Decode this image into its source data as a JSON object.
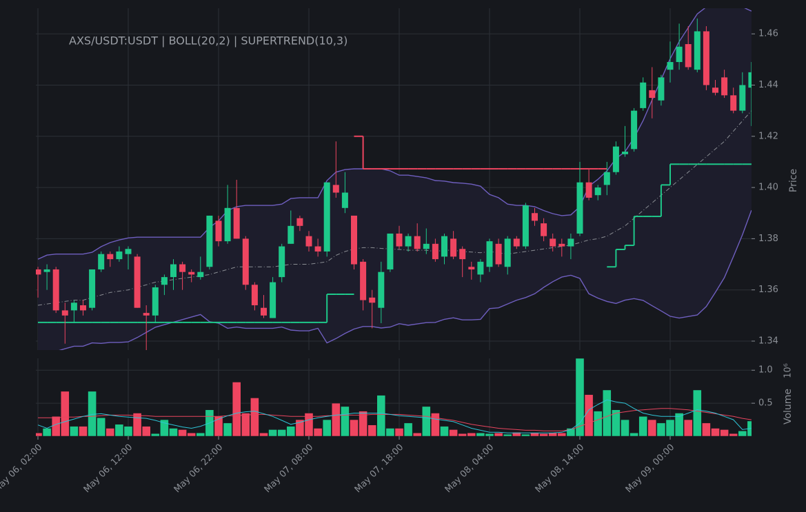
{
  "chart_data": {
    "type": "candlestick",
    "title": "AXS/USDT:USDT | BOLL(20,2) | SUPERTREND(10,3)",
    "y_label": "Price",
    "x": [
      "May 06, 02:00",
      "May 06, 03:00",
      "May 06, 04:00",
      "May 06, 05:00",
      "May 06, 06:00",
      "May 06, 07:00",
      "May 06, 08:00",
      "May 06, 09:00",
      "May 06, 10:00",
      "May 06, 11:00",
      "May 06, 12:00",
      "May 06, 13:00",
      "May 06, 14:00",
      "May 06, 15:00",
      "May 06, 16:00",
      "May 06, 17:00",
      "May 06, 18:00",
      "May 06, 19:00",
      "May 06, 20:00",
      "May 06, 21:00",
      "May 06, 22:00",
      "May 06, 23:00",
      "May 07, 00:00",
      "May 07, 01:00",
      "May 07, 02:00",
      "May 07, 03:00",
      "May 07, 04:00",
      "May 07, 05:00",
      "May 07, 06:00",
      "May 07, 07:00",
      "May 07, 08:00",
      "May 07, 09:00",
      "May 07, 10:00",
      "May 07, 11:00",
      "May 07, 12:00",
      "May 07, 13:00",
      "May 07, 14:00",
      "May 07, 15:00",
      "May 07, 16:00",
      "May 07, 17:00",
      "May 07, 18:00",
      "May 07, 19:00",
      "May 07, 20:00",
      "May 07, 21:00",
      "May 07, 22:00",
      "May 07, 23:00",
      "May 08, 00:00",
      "May 08, 01:00",
      "May 08, 02:00",
      "May 08, 03:00",
      "May 08, 04:00",
      "May 08, 05:00",
      "May 08, 06:00",
      "May 08, 07:00",
      "May 08, 08:00",
      "May 08, 09:00",
      "May 08, 10:00",
      "May 08, 11:00",
      "May 08, 12:00",
      "May 08, 13:00",
      "May 08, 14:00",
      "May 08, 15:00",
      "May 08, 16:00",
      "May 08, 17:00",
      "May 08, 18:00",
      "May 08, 19:00",
      "May 08, 20:00",
      "May 08, 21:00",
      "May 08, 22:00",
      "May 08, 23:00",
      "May 09, 00:00",
      "May 09, 01:00",
      "May 09, 02:00",
      "May 09, 03:00",
      "May 09, 04:00",
      "May 09, 05:00",
      "May 09, 06:00",
      "May 09, 07:00",
      "May 09, 08:00",
      "May 09, 09:00"
    ],
    "xticks": [
      "May 06, 02:00",
      "May 06, 12:00",
      "May 06, 22:00",
      "May 07, 08:00",
      "May 07, 18:00",
      "May 08, 04:00",
      "May 08, 14:00",
      "May 09, 00:00"
    ],
    "open": [
      1.368,
      1.367,
      1.368,
      1.352,
      1.352,
      1.354,
      1.353,
      1.368,
      1.374,
      1.372,
      1.374,
      1.373,
      1.351,
      1.35,
      1.362,
      1.365,
      1.37,
      1.367,
      1.365,
      1.369,
      1.387,
      1.379,
      1.392,
      1.38,
      1.362,
      1.353,
      1.349,
      1.365,
      1.378,
      1.388,
      1.381,
      1.377,
      1.375,
      1.401,
      1.392,
      1.389,
      1.371,
      1.357,
      1.353,
      1.368,
      1.382,
      1.377,
      1.381,
      1.376,
      1.378,
      1.373,
      1.38,
      1.376,
      1.369,
      1.366,
      1.369,
      1.378,
      1.369,
      1.38,
      1.377,
      1.39,
      1.386,
      1.38,
      1.378,
      1.377,
      1.382,
      1.402,
      1.397,
      1.401,
      1.406,
      1.413,
      1.415,
      1.431,
      1.438,
      1.434,
      1.446,
      1.449,
      1.456,
      1.446,
      1.461,
      1.439,
      1.443,
      1.436,
      1.43,
      1.439
    ],
    "high": [
      1.369,
      1.37,
      1.369,
      1.355,
      1.356,
      1.356,
      1.368,
      1.375,
      1.375,
      1.377,
      1.377,
      1.374,
      1.354,
      1.362,
      1.366,
      1.372,
      1.371,
      1.368,
      1.373,
      1.389,
      1.389,
      1.401,
      1.403,
      1.381,
      1.363,
      1.358,
      1.365,
      1.378,
      1.391,
      1.389,
      1.383,
      1.38,
      1.402,
      1.418,
      1.406,
      1.389,
      1.372,
      1.36,
      1.371,
      1.382,
      1.385,
      1.382,
      1.386,
      1.384,
      1.38,
      1.382,
      1.383,
      1.377,
      1.371,
      1.372,
      1.38,
      1.38,
      1.381,
      1.381,
      1.394,
      1.392,
      1.388,
      1.382,
      1.38,
      1.382,
      1.41,
      1.407,
      1.401,
      1.41,
      1.418,
      1.424,
      1.431,
      1.443,
      1.447,
      1.444,
      1.457,
      1.464,
      1.463,
      1.466,
      1.463,
      1.442,
      1.446,
      1.439,
      1.445,
      1.449
    ],
    "low": [
      1.357,
      1.36,
      1.351,
      1.339,
      1.347,
      1.35,
      1.352,
      1.367,
      1.369,
      1.371,
      1.368,
      1.353,
      1.336,
      1.347,
      1.358,
      1.36,
      1.36,
      1.363,
      1.364,
      1.368,
      1.377,
      1.378,
      1.38,
      1.36,
      1.352,
      1.349,
      1.349,
      1.363,
      1.378,
      1.383,
      1.375,
      1.373,
      1.373,
      1.396,
      1.39,
      1.368,
      1.352,
      1.345,
      1.347,
      1.367,
      1.376,
      1.375,
      1.375,
      1.374,
      1.371,
      1.37,
      1.372,
      1.365,
      1.364,
      1.363,
      1.367,
      1.369,
      1.366,
      1.376,
      1.376,
      1.385,
      1.379,
      1.375,
      1.373,
      1.372,
      1.381,
      1.395,
      1.395,
      1.397,
      1.405,
      1.412,
      1.414,
      1.43,
      1.427,
      1.432,
      1.441,
      1.446,
      1.446,
      1.445,
      1.438,
      1.436,
      1.435,
      1.429,
      1.429,
      1.424
    ],
    "close": [
      1.366,
      1.368,
      1.352,
      1.35,
      1.355,
      1.352,
      1.368,
      1.374,
      1.372,
      1.375,
      1.376,
      1.353,
      1.35,
      1.361,
      1.365,
      1.37,
      1.367,
      1.366,
      1.367,
      1.389,
      1.379,
      1.392,
      1.38,
      1.362,
      1.354,
      1.35,
      1.363,
      1.377,
      1.385,
      1.385,
      1.377,
      1.375,
      1.402,
      1.398,
      1.398,
      1.37,
      1.356,
      1.355,
      1.367,
      1.382,
      1.377,
      1.381,
      1.376,
      1.378,
      1.372,
      1.381,
      1.373,
      1.372,
      1.368,
      1.371,
      1.379,
      1.37,
      1.38,
      1.377,
      1.393,
      1.387,
      1.381,
      1.377,
      1.377,
      1.38,
      1.402,
      1.396,
      1.4,
      1.406,
      1.416,
      1.414,
      1.43,
      1.441,
      1.435,
      1.443,
      1.449,
      1.455,
      1.447,
      1.461,
      1.44,
      1.437,
      1.436,
      1.43,
      1.44,
      1.445
    ],
    "boll_upper": [
      1.372,
      1.3736,
      1.374,
      1.374,
      1.374,
      1.374,
      1.3747,
      1.3769,
      1.3785,
      1.3795,
      1.3803,
      1.3806,
      1.3806,
      1.3806,
      1.3806,
      1.3806,
      1.3806,
      1.3806,
      1.3806,
      1.3844,
      1.387,
      1.391,
      1.3925,
      1.393,
      1.393,
      1.393,
      1.393,
      1.3935,
      1.3957,
      1.396,
      1.396,
      1.396,
      1.4027,
      1.406,
      1.407,
      1.4073,
      1.4073,
      1.4073,
      1.4073,
      1.4065,
      1.4048,
      1.4048,
      1.4043,
      1.4038,
      1.4027,
      1.4025,
      1.4019,
      1.4017,
      1.4013,
      1.4005,
      1.3973,
      1.396,
      1.3935,
      1.393,
      1.393,
      1.3925,
      1.391,
      1.3898,
      1.389,
      1.3893,
      1.3925,
      1.4005,
      1.4032,
      1.4065,
      1.4113,
      1.414,
      1.4194,
      1.4261,
      1.4342,
      1.4422,
      1.4503,
      1.457,
      1.4624,
      1.4678,
      1.4705,
      1.471,
      1.4712,
      1.471,
      1.4705,
      1.4689
    ],
    "boll_middle": [
      1.354,
      1.3545,
      1.355,
      1.3555,
      1.356,
      1.356,
      1.357,
      1.358,
      1.359,
      1.3595,
      1.36,
      1.361,
      1.362,
      1.363,
      1.3635,
      1.364,
      1.3645,
      1.365,
      1.3655,
      1.366,
      1.367,
      1.368,
      1.369,
      1.369,
      1.369,
      1.369,
      1.369,
      1.3695,
      1.37,
      1.37,
      1.37,
      1.3705,
      1.371,
      1.3735,
      1.375,
      1.376,
      1.3765,
      1.3765,
      1.3762,
      1.376,
      1.3758,
      1.3755,
      1.3755,
      1.3755,
      1.375,
      1.3755,
      1.3755,
      1.375,
      1.3748,
      1.3745,
      1.375,
      1.3745,
      1.374,
      1.3745,
      1.375,
      1.3755,
      1.376,
      1.3765,
      1.377,
      1.3775,
      1.3785,
      1.3795,
      1.38,
      1.381,
      1.383,
      1.385,
      1.388,
      1.391,
      1.394,
      1.397,
      1.4,
      1.403,
      1.406,
      1.409,
      1.412,
      1.415,
      1.418,
      1.422,
      1.426,
      1.43
    ],
    "boll_lower": [
      1.336,
      1.3354,
      1.336,
      1.337,
      1.338,
      1.338,
      1.3393,
      1.3391,
      1.3395,
      1.3395,
      1.3397,
      1.3414,
      1.3434,
      1.3454,
      1.3464,
      1.3474,
      1.3484,
      1.3494,
      1.3504,
      1.3476,
      1.347,
      1.345,
      1.3455,
      1.345,
      1.345,
      1.345,
      1.345,
      1.3455,
      1.3443,
      1.344,
      1.344,
      1.345,
      1.3393,
      1.341,
      1.343,
      1.3447,
      1.3457,
      1.3457,
      1.3451,
      1.3455,
      1.3468,
      1.3462,
      1.3467,
      1.3472,
      1.3473,
      1.3485,
      1.3491,
      1.3483,
      1.3483,
      1.3485,
      1.3527,
      1.353,
      1.3545,
      1.356,
      1.357,
      1.3585,
      1.361,
      1.3632,
      1.365,
      1.3657,
      1.3645,
      1.3585,
      1.3568,
      1.3555,
      1.3547,
      1.356,
      1.3566,
      1.3559,
      1.3538,
      1.3518,
      1.3497,
      1.349,
      1.3496,
      1.3502,
      1.3535,
      1.359,
      1.3648,
      1.373,
      1.3815,
      1.3911
    ],
    "supertrend_up": [
      1.3473,
      1.3473,
      1.3473,
      1.3473,
      1.3473,
      1.3473,
      1.3473,
      1.3473,
      1.3473,
      1.3473,
      1.3473,
      1.3473,
      1.3473,
      1.3473,
      1.3473,
      1.3473,
      1.3473,
      1.3473,
      1.3473,
      1.3473,
      1.3473,
      1.3473,
      1.3473,
      1.3473,
      1.3473,
      1.3473,
      1.3473,
      1.3473,
      1.3473,
      1.3473,
      1.3473,
      1.3473,
      1.3583,
      1.3583,
      1.3583,
      null,
      null,
      null,
      null,
      null,
      null,
      null,
      null,
      null,
      null,
      null,
      null,
      null,
      null,
      null,
      null,
      null,
      null,
      null,
      null,
      null,
      null,
      null,
      null,
      null,
      null,
      null,
      null,
      1.369,
      1.3758,
      1.3774,
      1.3887,
      1.3887,
      1.3887,
      1.401,
      1.4091,
      1.4091,
      1.4091,
      1.4091,
      1.4091,
      1.4091,
      1.4091,
      1.4091,
      1.4091,
      1.4091
    ],
    "supertrend_down": [
      null,
      null,
      null,
      null,
      null,
      null,
      null,
      null,
      null,
      null,
      null,
      null,
      null,
      null,
      null,
      null,
      null,
      null,
      null,
      null,
      null,
      null,
      null,
      null,
      null,
      null,
      null,
      null,
      null,
      null,
      null,
      null,
      null,
      null,
      null,
      1.42,
      1.4073,
      1.4073,
      1.4073,
      1.4073,
      1.4073,
      1.4073,
      1.4073,
      1.4073,
      1.4073,
      1.4073,
      1.4073,
      1.4073,
      1.4073,
      1.4073,
      1.4073,
      1.4073,
      1.4073,
      1.4073,
      1.4073,
      1.4073,
      1.4073,
      1.4073,
      1.4073,
      1.4073,
      1.4073,
      1.4073,
      1.4073,
      null,
      null,
      null,
      null,
      null,
      null,
      null,
      null,
      null,
      null,
      null,
      null,
      null,
      null,
      null,
      null,
      null
    ],
    "ylim": [
      1.3365,
      1.47
    ],
    "yticks": [
      1.34,
      1.36,
      1.38,
      {
        "value": 1.4,
        "label": "1.40"
      },
      1.42,
      1.44,
      1.46
    ],
    "grid": true,
    "up_color": "#1ec98a",
    "down_color": "#ef4560",
    "band_color": "#6f5fc0",
    "band_fill": "#1d1d2c",
    "middle_color": "#8a8d93",
    "volume": {
      "y_label": "Volume",
      "scale_label": "10⁶",
      "values": [
        0.05,
        0.12,
        0.3,
        0.68,
        0.15,
        0.15,
        0.68,
        0.28,
        0.12,
        0.18,
        0.15,
        0.35,
        0.15,
        0.04,
        0.25,
        0.12,
        0.1,
        0.05,
        0.05,
        0.4,
        0.3,
        0.2,
        0.82,
        0.35,
        0.58,
        0.05,
        0.1,
        0.1,
        0.15,
        0.25,
        0.35,
        0.12,
        0.25,
        0.5,
        0.45,
        0.25,
        0.38,
        0.17,
        0.62,
        0.12,
        0.12,
        0.2,
        0.05,
        0.45,
        0.35,
        0.15,
        0.1,
        0.04,
        0.05,
        0.05,
        0.04,
        0.05,
        0.03,
        0.06,
        0.03,
        0.05,
        0.04,
        0.05,
        0.05,
        0.12,
        1.18,
        0.63,
        0.38,
        0.7,
        0.4,
        0.25,
        0.05,
        0.3,
        0.25,
        0.2,
        0.25,
        0.35,
        0.25,
        0.7,
        0.2,
        0.12,
        0.1,
        0.04,
        0.08,
        0.23
      ],
      "ma_fast": [
        0.17,
        0.12,
        0.18,
        0.22,
        0.26,
        0.3,
        0.33,
        0.34,
        0.32,
        0.3,
        0.29,
        0.28,
        0.27,
        0.24,
        0.2,
        0.17,
        0.14,
        0.12,
        0.15,
        0.2,
        0.26,
        0.31,
        0.35,
        0.37,
        0.38,
        0.34,
        0.3,
        0.24,
        0.18,
        0.21,
        0.25,
        0.28,
        0.3,
        0.32,
        0.33,
        0.35,
        0.35,
        0.35,
        0.35,
        0.33,
        0.31,
        0.3,
        0.29,
        0.28,
        0.26,
        0.24,
        0.22,
        0.17,
        0.12,
        0.09,
        0.06,
        0.06,
        0.05,
        0.05,
        0.05,
        0.05,
        0.05,
        0.05,
        0.06,
        0.1,
        0.2,
        0.4,
        0.48,
        0.55,
        0.52,
        0.5,
        0.42,
        0.35,
        0.32,
        0.3,
        0.3,
        0.3,
        0.35,
        0.4,
        0.38,
        0.35,
        0.3,
        0.25,
        0.1,
        0.12
      ],
      "ma_slow": [
        0.28,
        0.28,
        0.28,
        0.29,
        0.29,
        0.3,
        0.3,
        0.31,
        0.32,
        0.32,
        0.32,
        0.31,
        0.31,
        0.3,
        0.3,
        0.3,
        0.3,
        0.3,
        0.3,
        0.3,
        0.3,
        0.31,
        0.31,
        0.32,
        0.33,
        0.33,
        0.32,
        0.31,
        0.3,
        0.3,
        0.3,
        0.3,
        0.31,
        0.31,
        0.32,
        0.32,
        0.32,
        0.33,
        0.33,
        0.33,
        0.33,
        0.32,
        0.31,
        0.3,
        0.28,
        0.26,
        0.24,
        0.21,
        0.18,
        0.16,
        0.14,
        0.12,
        0.11,
        0.1,
        0.09,
        0.09,
        0.08,
        0.08,
        0.08,
        0.1,
        0.15,
        0.2,
        0.25,
        0.3,
        0.35,
        0.37,
        0.39,
        0.4,
        0.41,
        0.42,
        0.42,
        0.41,
        0.4,
        0.38,
        0.36,
        0.34,
        0.32,
        0.3,
        0.27,
        0.25
      ],
      "ma_fast_color": "#2ec4d6",
      "ma_slow_color": "#e8455f",
      "ylim": [
        0,
        1.18
      ],
      "yticks": [
        0.5,
        {
          "value": 1,
          "label": "1.0"
        }
      ]
    }
  }
}
